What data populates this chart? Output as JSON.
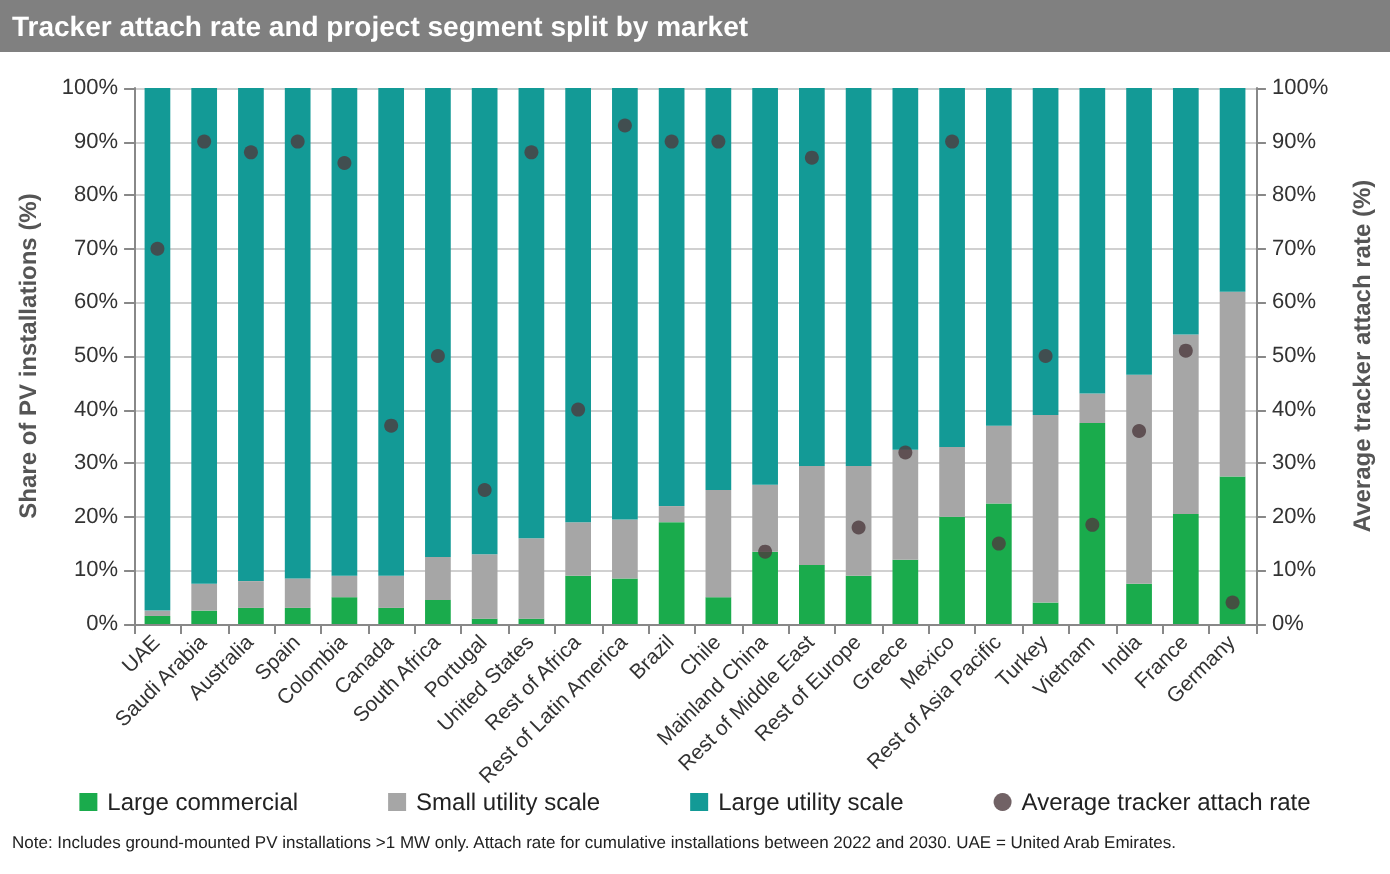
{
  "chart_data": {
    "type": "bar",
    "title": "Tracker attach rate and project segment split by market",
    "categories": [
      "UAE",
      "Saudi Arabia",
      "Australia",
      "Spain",
      "Colombia",
      "Canada",
      "South Africa",
      "Portugal",
      "United States",
      "Rest of Africa",
      "Rest of Latin America",
      "Brazil",
      "Chile",
      "Mainland China",
      "Rest of Middle East",
      "Rest of Europe",
      "Greece",
      "Mexico",
      "Rest of Asia Pacific",
      "Turkey",
      "Vietnam",
      "India",
      "France",
      "Germany"
    ],
    "stacked": true,
    "series": [
      {
        "name": "Large commercial",
        "color": "#1aab4c",
        "values": [
          1.5,
          2.5,
          3,
          3,
          5,
          3,
          4.5,
          1,
          1,
          9,
          8.5,
          19,
          5,
          13.5,
          11,
          9,
          12,
          20,
          22.5,
          4,
          37.5,
          7.5,
          20.5,
          27.5
        ]
      },
      {
        "name": "Small utility scale",
        "color": "#a6a6a6",
        "values": [
          1,
          5,
          5,
          5.5,
          4,
          6,
          8,
          12,
          15,
          10,
          11,
          3,
          20,
          12.5,
          18.5,
          20.5,
          20.5,
          13,
          14.5,
          35,
          5.5,
          39,
          33.5,
          34.5
        ]
      },
      {
        "name": "Large utility scale",
        "color": "#139a96",
        "values": [
          97.5,
          92.5,
          92,
          91.5,
          91,
          91,
          87.5,
          87,
          84,
          81,
          80.5,
          78,
          75,
          74,
          70.5,
          70.5,
          67.5,
          67,
          63,
          61,
          57,
          53.5,
          46,
          38
        ]
      },
      {
        "name": "Average tracker attach rate",
        "type": "scatter",
        "axis": "y2",
        "color": "#4d3b3f",
        "x": [
          "UAE",
          "Saudi Arabia",
          "Australia",
          "Spain",
          "Colombia",
          "Canada",
          "South Africa",
          "Portugal",
          "United States",
          "Rest of Africa",
          "Rest of Latin America",
          "Brazil",
          "Chile",
          "Mainland China",
          "Rest of Middle East",
          "Rest of Europe",
          "Greece",
          "Mexico",
          "Rest of Asia Pacific",
          "Turkey",
          "Vietnam",
          "India",
          "France",
          "Germany"
        ],
        "values": [
          70,
          90,
          88,
          90,
          86,
          37,
          50,
          25,
          88,
          40,
          93,
          90,
          90,
          13.5,
          87,
          18,
          32,
          90,
          15,
          50,
          18.5,
          36,
          51,
          4
        ]
      }
    ],
    "ylabel": "Share of PV installations (%)",
    "y2label": "Average tracker attach rate (%)",
    "ylim": [
      0,
      100
    ],
    "yticks": [
      {
        "value": 0,
        "label": "0%"
      },
      {
        "value": 10,
        "label": "10%"
      },
      {
        "value": 20,
        "label": "20%"
      },
      {
        "value": 30,
        "label": "30%"
      },
      {
        "value": 40,
        "label": "40%"
      },
      {
        "value": 50,
        "label": "50%"
      },
      {
        "value": 60,
        "label": "60%"
      },
      {
        "value": 70,
        "label": "70%"
      },
      {
        "value": 80,
        "label": "80%"
      },
      {
        "value": 90,
        "label": "90%"
      },
      {
        "value": 100,
        "label": "100%"
      }
    ],
    "y2lim": [
      0,
      100
    ],
    "y2ticks": [
      {
        "value": 0,
        "label": "0%"
      },
      {
        "value": 10,
        "label": "10%"
      },
      {
        "value": 20,
        "label": "20%"
      },
      {
        "value": 30,
        "label": "30%"
      },
      {
        "value": 40,
        "label": "40%"
      },
      {
        "value": 50,
        "label": "50%"
      },
      {
        "value": 60,
        "label": "60%"
      },
      {
        "value": 70,
        "label": "70%"
      },
      {
        "value": 80,
        "label": "80%"
      },
      {
        "value": 90,
        "label": "90%"
      },
      {
        "value": 100,
        "label": "100%"
      }
    ],
    "grid": "y",
    "legend": "bottom",
    "marker": "circle",
    "annotations": [
      "Note: Includes ground-mounted PV installations >1 MW only. Attach rate for cumulative installations between 2022 and 2030. UAE = United Arab Emirates."
    ]
  }
}
